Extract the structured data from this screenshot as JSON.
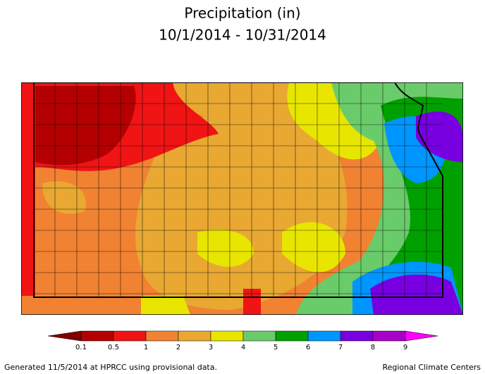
{
  "title": {
    "line1": "Precipitation (in)",
    "line2": "10/1/2014 - 10/31/2014"
  },
  "legend": {
    "labels": [
      "0.1",
      "0.5",
      "1",
      "2",
      "3",
      "4",
      "5",
      "6",
      "7",
      "8",
      "9"
    ],
    "colors": [
      "#800000",
      "#b40000",
      "#f01414",
      "#f08232",
      "#e8a832",
      "#e8e600",
      "#6acb6a",
      "#00a000",
      "#0096ff",
      "#7800e0",
      "#a800c8",
      "#ff00ff"
    ]
  },
  "footer": {
    "left": "Generated 11/5/2014 at HPRCC using provisional data.",
    "right": "Regional Climate Centers"
  }
}
